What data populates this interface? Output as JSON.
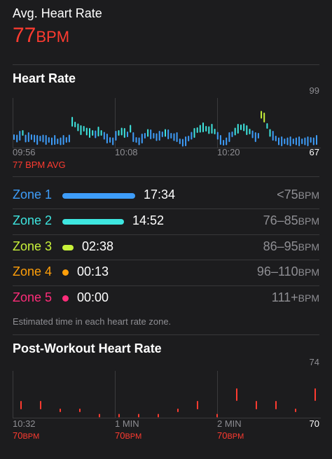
{
  "avg": {
    "title": "Avg. Heart Rate",
    "value": "77",
    "unit": "BPM"
  },
  "heart_rate": {
    "title": "Heart Rate",
    "y_max_label": "99",
    "y_min_label": "67",
    "x_labels": [
      "09:56",
      "10:08",
      "10:20"
    ],
    "avg_label": "77 BPM AVG",
    "colors": {
      "zone1": "#3e9dfa",
      "zone2": "#3ee6e0",
      "zone3": "#c8f13a",
      "zone4": "#ff9f0a",
      "zone5": "#ff2d7a",
      "red": "#ff3b30"
    }
  },
  "zones": [
    {
      "label": "Zone 1",
      "time": "17:34",
      "range": "<75",
      "unit": "BPM",
      "color": "#3e9dfa",
      "bar_fraction": 1.0
    },
    {
      "label": "Zone 2",
      "time": "14:52",
      "range": "76–85",
      "unit": "BPM",
      "color": "#3ee6e0",
      "bar_fraction": 0.85
    },
    {
      "label": "Zone 3",
      "time": "02:38",
      "range": "86–95",
      "unit": "BPM",
      "color": "#c8f13a",
      "bar_fraction": 0.15
    },
    {
      "label": "Zone 4",
      "time": "00:13",
      "range": "96–110",
      "unit": "BPM",
      "color": "#ff9f0a",
      "bar_fraction": 0.01
    },
    {
      "label": "Zone 5",
      "time": "00:00",
      "range": "111+",
      "unit": "BPM",
      "color": "#ff2d7a",
      "bar_fraction": 0.0
    }
  ],
  "zones_note": "Estimated time in each heart rate zone.",
  "post": {
    "title": "Post-Workout Heart Rate",
    "y_max_label": "74",
    "y_min_label": "70",
    "x_labels": [
      "10:32",
      "1 MIN",
      "2 MIN"
    ],
    "values": [
      {
        "value": "70",
        "unit": "BPM"
      },
      {
        "value": "70",
        "unit": "BPM"
      },
      {
        "value": "70",
        "unit": "BPM"
      }
    ]
  },
  "chart_data": [
    {
      "type": "bar",
      "title": "Heart Rate",
      "ylim": [
        67,
        99
      ],
      "x_ticks": [
        "09:56",
        "10:08",
        "10:20"
      ],
      "series": [
        {
          "values": [
            73,
            72,
            74,
            76,
            72,
            73,
            73,
            72,
            71,
            72,
            72,
            71,
            71,
            70,
            71,
            70,
            70,
            71,
            71,
            72,
            84,
            82,
            80,
            78,
            79,
            77,
            76,
            76,
            75,
            77,
            76,
            74,
            72,
            71,
            70,
            74,
            76,
            77,
            76,
            75,
            79,
            73,
            71,
            70,
            72,
            74,
            76,
            75,
            74,
            73,
            74,
            75,
            76,
            75,
            74,
            73,
            73,
            70,
            69,
            70,
            72,
            74,
            76,
            78,
            79,
            80,
            79,
            78,
            79,
            77,
            74,
            71,
            69,
            70,
            73,
            75,
            77,
            79,
            80,
            80,
            78,
            77,
            75,
            73,
            74,
            89,
            87,
            81,
            76,
            74,
            72,
            70,
            70,
            70,
            70,
            70,
            70,
            70,
            70,
            70,
            70,
            70,
            71,
            70,
            71
          ]
        }
      ]
    },
    {
      "type": "bar",
      "title": "Post-Workout Heart Rate",
      "ylim": [
        70,
        74
      ],
      "x_ticks": [
        "10:32",
        "1 MIN",
        "2 MIN"
      ],
      "series": [
        {
          "values": [
            71,
            71,
            70.5,
            70.5,
            70,
            70,
            70,
            70,
            70.5,
            71,
            70,
            72,
            71,
            71,
            70.5,
            72
          ]
        }
      ]
    }
  ]
}
